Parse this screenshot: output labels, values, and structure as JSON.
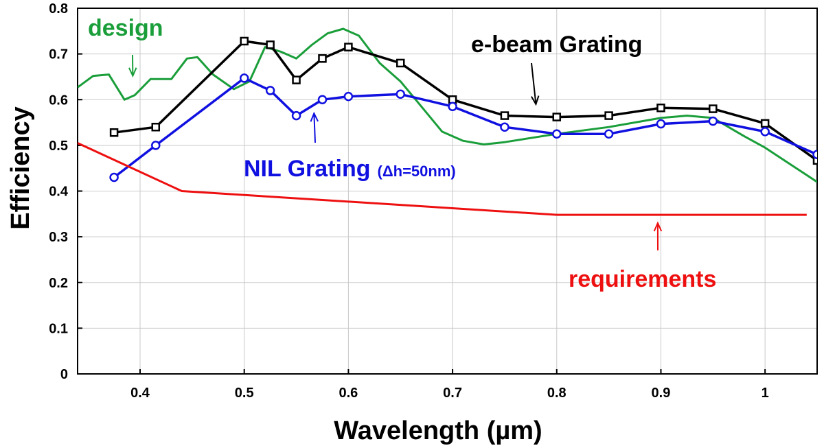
{
  "chart_data": {
    "type": "line",
    "title": "",
    "xlabel": "Wavelength (µm)",
    "ylabel": "Efficiency",
    "xlim": [
      0.34,
      1.05
    ],
    "ylim": [
      0,
      0.8
    ],
    "grid": true,
    "xticks": [
      0.4,
      0.5,
      0.6,
      0.7,
      0.8,
      0.9,
      1.0
    ],
    "xtick_labels": [
      "0.4",
      "0.5",
      "0.6",
      "0.7",
      "0.8",
      "0.9",
      "1"
    ],
    "yticks": [
      0,
      0.1,
      0.2,
      0.3,
      0.4,
      0.5,
      0.6,
      0.7,
      0.8
    ],
    "ytick_labels": [
      "0",
      "0.1",
      "0.2",
      "0.3",
      "0.4",
      "0.5",
      "0.6",
      "0.7",
      "0.8"
    ],
    "series": [
      {
        "name": "design",
        "color": "#1a9e3a",
        "marker": "none",
        "x": [
          0.34,
          0.355,
          0.37,
          0.385,
          0.395,
          0.41,
          0.43,
          0.445,
          0.455,
          0.47,
          0.49,
          0.505,
          0.52,
          0.535,
          0.55,
          0.565,
          0.58,
          0.595,
          0.61,
          0.63,
          0.65,
          0.67,
          0.69,
          0.71,
          0.73,
          0.75,
          0.8,
          0.85,
          0.9,
          0.925,
          0.95,
          0.98,
          1.0,
          1.02,
          1.05
        ],
        "y": [
          0.627,
          0.652,
          0.655,
          0.6,
          0.61,
          0.645,
          0.645,
          0.69,
          0.693,
          0.655,
          0.623,
          0.64,
          0.715,
          0.705,
          0.69,
          0.72,
          0.745,
          0.755,
          0.74,
          0.68,
          0.64,
          0.585,
          0.53,
          0.51,
          0.502,
          0.507,
          0.525,
          0.54,
          0.56,
          0.565,
          0.56,
          0.52,
          0.495,
          0.465,
          0.42
        ]
      },
      {
        "name": "e-beam Grating",
        "color": "#000000",
        "marker": "square",
        "x": [
          0.375,
          0.415,
          0.5,
          0.525,
          0.55,
          0.575,
          0.6,
          0.65,
          0.7,
          0.75,
          0.8,
          0.85,
          0.9,
          0.95,
          1.0,
          1.05
        ],
        "y": [
          0.528,
          0.54,
          0.728,
          0.72,
          0.643,
          0.69,
          0.715,
          0.68,
          0.6,
          0.565,
          0.562,
          0.565,
          0.582,
          0.58,
          0.548,
          0.467
        ]
      },
      {
        "name": "NIL Grating (Δh=50nm)",
        "color": "#1010e0",
        "marker": "circle",
        "x": [
          0.375,
          0.415,
          0.5,
          0.525,
          0.55,
          0.575,
          0.6,
          0.65,
          0.7,
          0.75,
          0.8,
          0.85,
          0.9,
          0.95,
          1.0,
          1.05
        ],
        "y": [
          0.43,
          0.5,
          0.647,
          0.62,
          0.565,
          0.6,
          0.607,
          0.612,
          0.585,
          0.54,
          0.525,
          0.525,
          0.547,
          0.553,
          0.53,
          0.48
        ]
      },
      {
        "name": "requirements",
        "color": "#ee1010",
        "marker": "none",
        "x": [
          0.34,
          0.44,
          0.8,
          1.04
        ],
        "y": [
          0.505,
          0.4,
          0.348,
          0.348
        ]
      }
    ],
    "annotations": [
      {
        "text": "design",
        "color": "#1a9e3a",
        "arrow_to": [
          0.393,
          0.652
        ]
      },
      {
        "text": "e-beam Grating",
        "color": "#000000",
        "arrow_to": [
          0.78,
          0.59
        ]
      },
      {
        "text": "NIL Grating",
        "sub": "(Δh=50nm)",
        "color": "#1010e0",
        "arrow_to": [
          0.567,
          0.57
        ]
      },
      {
        "text": "requirements",
        "color": "#ee1010",
        "arrow_to": [
          0.897,
          0.33
        ]
      }
    ]
  }
}
